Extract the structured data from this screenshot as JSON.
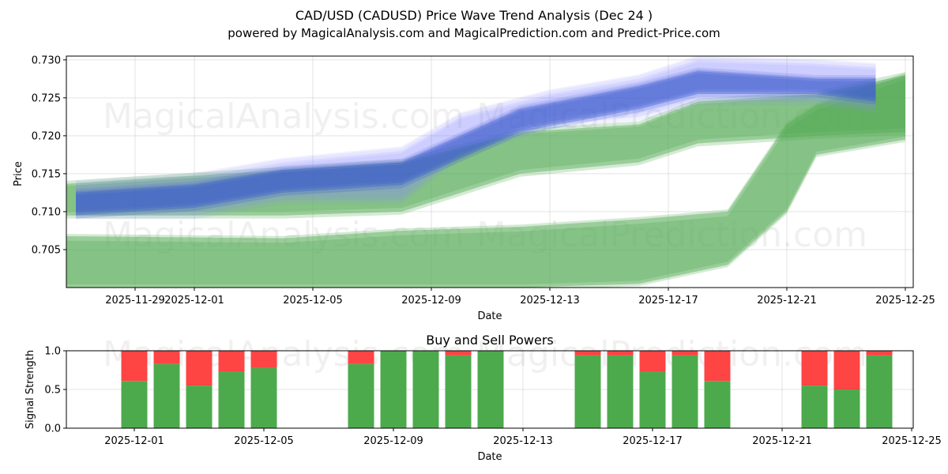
{
  "chart_data": [
    {
      "type": "area",
      "title": "CAD/USD (CADUSD) Price Wave Trend Analysis (Dec 24 )",
      "subtitle": "powered by MagicalAnalysis.com and MagicalPrediction.com and Predict-Price.com",
      "xlabel": "Date",
      "ylabel": "Price",
      "x_ticks": [
        "2025-11-29",
        "2025-12-01",
        "2025-12-05",
        "2025-12-09",
        "2025-12-13",
        "2025-12-17",
        "2025-12-21",
        "2025-12-25"
      ],
      "y_ticks": [
        "0.705",
        "0.710",
        "0.715",
        "0.720",
        "0.725",
        "0.730"
      ],
      "ylim": [
        0.7,
        0.7305
      ],
      "grid": true,
      "watermarks": [
        "MagicalAnalysis.com",
        "MagicalPrediction.com"
      ],
      "series": [
        {
          "name": "blue wave center",
          "color": "#3355cc",
          "x": [
            "2025-11-27",
            "2025-12-01",
            "2025-12-04",
            "2025-12-08",
            "2025-12-12",
            "2025-12-16",
            "2025-12-18",
            "2025-12-22",
            "2025-12-24"
          ],
          "low": [
            0.7095,
            0.7105,
            0.7125,
            0.7135,
            0.7205,
            0.7235,
            0.7255,
            0.7255,
            0.7245
          ],
          "high": [
            0.7125,
            0.7135,
            0.7155,
            0.7165,
            0.7235,
            0.7265,
            0.7285,
            0.7275,
            0.7275
          ]
        },
        {
          "name": "blue wave envelope",
          "color": "#8888ff",
          "x": [
            "2025-11-27",
            "2025-12-01",
            "2025-12-04",
            "2025-12-08",
            "2025-12-10",
            "2025-12-13",
            "2025-12-16",
            "2025-12-18",
            "2025-12-22",
            "2025-12-24"
          ],
          "low": [
            0.7095,
            0.7095,
            0.7115,
            0.7115,
            0.7175,
            0.7215,
            0.7225,
            0.7245,
            0.7245,
            0.7235
          ],
          "high": [
            0.7135,
            0.7145,
            0.7165,
            0.718,
            0.7225,
            0.7255,
            0.7275,
            0.73,
            0.7295,
            0.729
          ]
        },
        {
          "name": "green wave upper",
          "color": "#55aa55",
          "x": [
            "2025-11-26",
            "2025-12-04",
            "2025-12-08",
            "2025-12-12",
            "2025-12-16",
            "2025-12-18",
            "2025-12-22",
            "2025-12-25"
          ],
          "low": [
            0.7095,
            0.7095,
            0.71,
            0.715,
            0.7165,
            0.719,
            0.72,
            0.7205
          ],
          "high": [
            0.7135,
            0.7155,
            0.7165,
            0.7205,
            0.7215,
            0.7245,
            0.7255,
            0.728
          ]
        },
        {
          "name": "green wave lower",
          "color": "#55aa55",
          "x": [
            "2025-11-26",
            "2025-12-04",
            "2025-12-08",
            "2025-12-12",
            "2025-12-16",
            "2025-12-19",
            "2025-12-21",
            "2025-12-22",
            "2025-12-25"
          ],
          "low": [
            0.7,
            0.7,
            0.7,
            0.7,
            0.7005,
            0.703,
            0.71,
            0.7175,
            0.7195
          ],
          "high": [
            0.7068,
            0.7065,
            0.7075,
            0.708,
            0.709,
            0.71,
            0.7215,
            0.724,
            0.728
          ]
        }
      ]
    },
    {
      "type": "bar",
      "title": "Buy and Sell Powers",
      "xlabel": "Date",
      "ylabel": "Signal Strength",
      "x_ticks": [
        "2025-12-01",
        "2025-12-05",
        "2025-12-09",
        "2025-12-13",
        "2025-12-17",
        "2025-12-21",
        "2025-12-25"
      ],
      "y_ticks": [
        "0.0",
        "0.5",
        "1.0"
      ],
      "ylim": [
        0,
        1
      ],
      "grid": true,
      "buy_color": "#4caa4c",
      "sell_color": "#ff4444",
      "categories": [
        "2025-12-01",
        "2025-12-02",
        "2025-12-03",
        "2025-12-04",
        "2025-12-05",
        "2025-12-08",
        "2025-12-09",
        "2025-12-10",
        "2025-12-11",
        "2025-12-12",
        "2025-12-15",
        "2025-12-16",
        "2025-12-17",
        "2025-12-18",
        "2025-12-19",
        "2025-12-22",
        "2025-12-23",
        "2025-12-24"
      ],
      "series": [
        {
          "name": "Buy",
          "values": [
            0.61,
            0.83,
            0.55,
            0.73,
            0.78,
            0.83,
            1.0,
            1.0,
            0.94,
            1.0,
            0.94,
            0.94,
            0.73,
            0.94,
            0.61,
            0.55,
            0.5,
            0.94
          ]
        },
        {
          "name": "Sell",
          "values": [
            0.39,
            0.17,
            0.45,
            0.27,
            0.22,
            0.17,
            0.0,
            0.0,
            0.06,
            0.0,
            0.06,
            0.06,
            0.27,
            0.06,
            0.39,
            0.45,
            0.5,
            0.06
          ]
        }
      ]
    }
  ]
}
